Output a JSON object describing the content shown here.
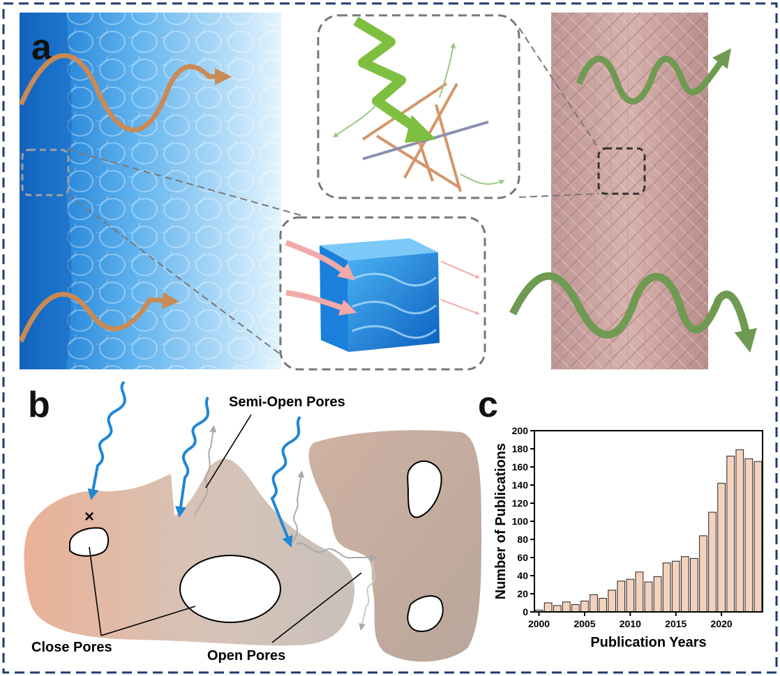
{
  "panel_a": {
    "label": "a"
  },
  "panel_b": {
    "label": "b",
    "labels": {
      "semi_open": "Semi-Open Pores",
      "close": "Close Pores",
      "open": "Open Pores"
    }
  },
  "panel_c": {
    "label": "c"
  },
  "colors": {
    "frame": "#1f3a6e",
    "water_dark": "#1f73c8",
    "water_light": "#cfe9fb",
    "orange_wave": "#c98a55",
    "green_wave": "#7aa05a",
    "fiber": "#c9a3a3",
    "blue_arrow": "#1f86d6",
    "bar_top": "#e8c3b4",
    "bar_bottom": "#fbe3b8"
  },
  "chart_data": {
    "type": "bar",
    "xlabel": "Publication Years",
    "ylabel": "Number of Publications",
    "x": [
      2000,
      2001,
      2002,
      2003,
      2004,
      2005,
      2006,
      2007,
      2008,
      2009,
      2010,
      2011,
      2012,
      2013,
      2014,
      2015,
      2016,
      2017,
      2018,
      2019,
      2020,
      2021,
      2022,
      2023,
      2024
    ],
    "values": [
      2,
      10,
      7,
      11,
      8,
      12,
      19,
      15,
      24,
      34,
      36,
      44,
      33,
      39,
      54,
      56,
      61,
      59,
      84,
      110,
      142,
      172,
      179,
      169,
      166
    ],
    "xticks": [
      2000,
      2005,
      2010,
      2015,
      2020
    ],
    "yticks": [
      0,
      20,
      40,
      60,
      80,
      100,
      120,
      140,
      160,
      180,
      200
    ],
    "ylim": [
      0,
      200
    ],
    "xlim": [
      1999.5,
      2024.5
    ]
  }
}
